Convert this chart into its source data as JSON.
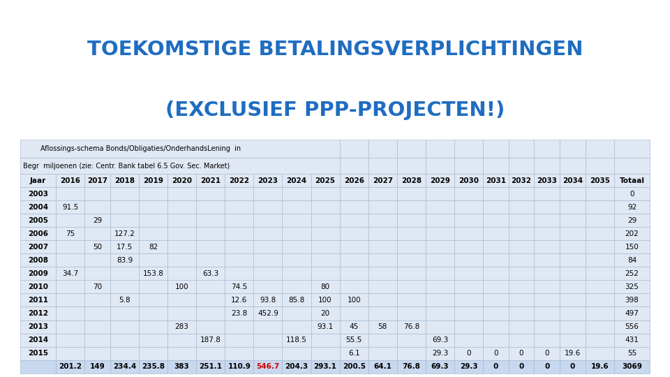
{
  "title_line1": "TOEKOMSTIGE BETALINGSVERPLICHTINGEN",
  "title_line2": "(EXCLUSIEF PPP-PROJECTEN!)",
  "title_color": "#1F6DC1",
  "subtitle1": "        Aflossings-schema Bonds/Obligaties/OnderhandsLening  in",
  "subtitle2": "Begr  miljoenen (zie: Centr. Bank tabel 6.5 Gov. Sec. Market)",
  "header": [
    "Jaar",
    "2016",
    "2017",
    "2018",
    "2019",
    "2020",
    "2021",
    "2022",
    "2023",
    "2024",
    "2025",
    "2026",
    "2027",
    "2028",
    "2029",
    "2030",
    "2031",
    "2032",
    "2033",
    "2034",
    "2035",
    "Totaal"
  ],
  "rows": [
    [
      "2003",
      "",
      "",
      "",
      "",
      "",
      "",
      "",
      "",
      "",
      "",
      "",
      "",
      "",
      "",
      "",
      "",
      "",
      "",
      "",
      "",
      "0"
    ],
    [
      "2004",
      "91.5",
      "",
      "",
      "",
      "",
      "",
      "",
      "",
      "",
      "",
      "",
      "",
      "",
      "",
      "",
      "",
      "",
      "",
      "",
      "",
      "92"
    ],
    [
      "2005",
      "",
      "29",
      "",
      "",
      "",
      "",
      "",
      "",
      "",
      "",
      "",
      "",
      "",
      "",
      "",
      "",
      "",
      "",
      "",
      "",
      "29"
    ],
    [
      "2006",
      "75",
      "",
      "127.2",
      "",
      "",
      "",
      "",
      "",
      "",
      "",
      "",
      "",
      "",
      "",
      "",
      "",
      "",
      "",
      "",
      "",
      "202"
    ],
    [
      "2007",
      "",
      "50",
      "17.5",
      "82",
      "",
      "",
      "",
      "",
      "",
      "",
      "",
      "",
      "",
      "",
      "",
      "",
      "",
      "",
      "",
      "",
      "150"
    ],
    [
      "2008",
      "",
      "",
      "83.9",
      "",
      "",
      "",
      "",
      "",
      "",
      "",
      "",
      "",
      "",
      "",
      "",
      "",
      "",
      "",
      "",
      "",
      "84"
    ],
    [
      "2009",
      "34.7",
      "",
      "",
      "153.8",
      "",
      "63.3",
      "",
      "",
      "",
      "",
      "",
      "",
      "",
      "",
      "",
      "",
      "",
      "",
      "",
      "",
      "252"
    ],
    [
      "2010",
      "",
      "70",
      "",
      "",
      "100",
      "",
      "74.5",
      "",
      "",
      "80",
      "",
      "",
      "",
      "",
      "",
      "",
      "",
      "",
      "",
      "",
      "325"
    ],
    [
      "2011",
      "",
      "",
      "5.8",
      "",
      "",
      "",
      "12.6",
      "93.8",
      "85.8",
      "100",
      "100",
      "",
      "",
      "",
      "",
      "",
      "",
      "",
      "",
      "",
      "398"
    ],
    [
      "2012",
      "",
      "",
      "",
      "",
      "",
      "",
      "23.8",
      "452.9",
      "",
      "20",
      "",
      "",
      "",
      "",
      "",
      "",
      "",
      "",
      "",
      "",
      "497"
    ],
    [
      "2013",
      "",
      "",
      "",
      "",
      "283",
      "",
      "",
      "",
      "",
      "93.1",
      "45",
      "58",
      "76.8",
      "",
      "",
      "",
      "",
      "",
      "",
      "",
      "556"
    ],
    [
      "2014",
      "",
      "",
      "",
      "",
      "",
      "187.8",
      "",
      "",
      "118.5",
      "",
      "55.5",
      "",
      "",
      "69.3",
      "",
      "",
      "",
      "",
      "",
      "",
      "431"
    ],
    [
      "2015",
      "",
      "",
      "",
      "",
      "",
      "",
      "",
      "",
      "",
      "",
      "6.1",
      "",
      "",
      "29.3",
      "0",
      "0",
      "0",
      "0",
      "19.6",
      "",
      "55"
    ],
    [
      "",
      "201.2",
      "149",
      "234.4",
      "235.8",
      "383",
      "251.1",
      "110.9",
      "546.7",
      "204.3",
      "293.1",
      "200.5",
      "64.1",
      "76.8",
      "69.3",
      "29.3",
      "0",
      "0",
      "0",
      "0",
      "19.6",
      "3069"
    ]
  ],
  "bg_color": "#FFFFFF",
  "table_bg": "#E0E8F4",
  "last_row_bg": "#C8D8EE",
  "highlight_color": "#CC0000",
  "normal_color": "#000000",
  "border_color": "#A0B4CC",
  "col_widths_raw": [
    3.5,
    2.8,
    2.5,
    2.8,
    2.8,
    2.8,
    2.8,
    2.8,
    2.8,
    2.8,
    2.8,
    2.8,
    2.8,
    2.8,
    2.8,
    2.8,
    2.5,
    2.5,
    2.5,
    2.5,
    2.8,
    3.5
  ],
  "title_fontsize": 21,
  "header_fontsize": 7.5,
  "cell_fontsize": 7.5,
  "sub_fontsize": 7.0
}
